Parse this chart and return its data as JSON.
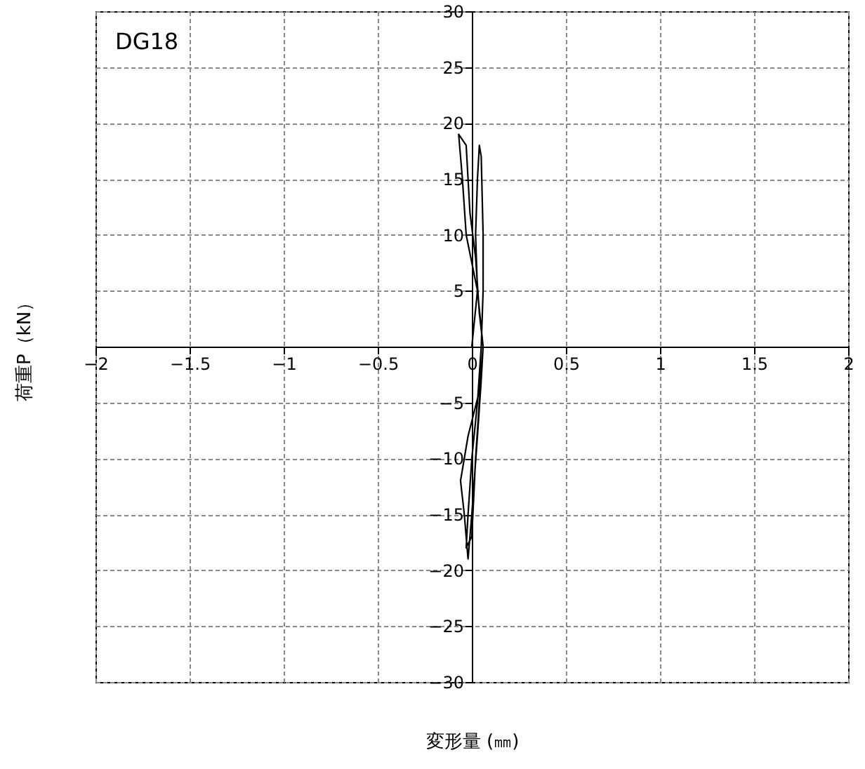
{
  "chart_data": {
    "type": "line",
    "xlabel": "変形量 (㎜)",
    "ylabel": "荷重P（kN）",
    "annotations": [
      "DG18"
    ],
    "series": [
      {
        "color": "#000000",
        "x": [
          0,
          0.03,
          0.02,
          0.03,
          0.04,
          0.05,
          0.06,
          0.06,
          0.05,
          0.03,
          0.0,
          -0.02,
          -0.03,
          0.0,
          0.02,
          0.04,
          0.06,
          0.03,
          -0.03,
          -0.05,
          -0.07,
          -0.03,
          -0.01,
          0.02,
          0.04,
          0.06,
          0.04,
          -0.02,
          -0.06,
          -0.04,
          -0.02,
          0.0,
          0.03,
          0.05,
          0.06
        ],
        "values": [
          0,
          5,
          10,
          15,
          18,
          17,
          10,
          5,
          0,
          -5,
          -10,
          -15,
          -18,
          -17,
          -10,
          -5,
          0,
          5,
          10,
          15,
          19,
          18,
          12,
          8,
          3,
          0,
          -4,
          -8,
          -12,
          -15,
          -19,
          -15,
          -8,
          -3,
          0
        ]
      }
    ],
    "xlim": [
      -2,
      2
    ],
    "xticks": [
      -2,
      -1.5,
      -1,
      -0.5,
      0,
      0.5,
      1,
      1.5,
      2
    ],
    "ylim": [
      -30,
      30
    ],
    "yticks": [
      -30,
      -25,
      -20,
      -15,
      -10,
      -5,
      {
        "value": 0,
        "label": null
      },
      5,
      10,
      15,
      20,
      25,
      30
    ],
    "grid": true,
    "line_style": "solid",
    "marker": "none"
  }
}
